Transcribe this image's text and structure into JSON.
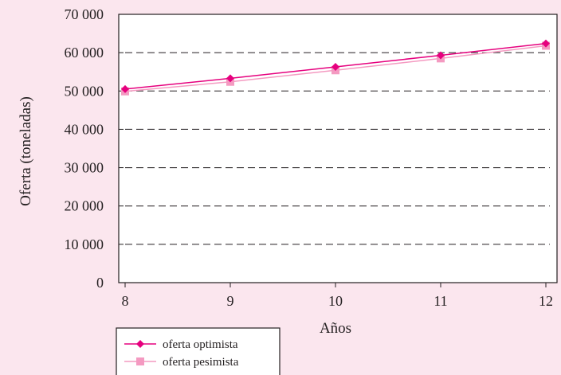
{
  "chart_data": {
    "type": "line",
    "title": "",
    "xlabel": "Años",
    "ylabel": "Oferta (toneladas)",
    "x": [
      8,
      9,
      10,
      11,
      12
    ],
    "x_ticks": [
      "8",
      "9",
      "10",
      "11",
      "12"
    ],
    "xlim": [
      8,
      12
    ],
    "ylim": [
      0,
      70000
    ],
    "y_ticks": [
      "0",
      "10 000",
      "20 000",
      "30 000",
      "40 000",
      "50 000",
      "60 000",
      "70 000"
    ],
    "y_tick_values": [
      0,
      10000,
      20000,
      30000,
      40000,
      50000,
      60000,
      70000
    ],
    "grid": "horizontal dashed",
    "legend_position": "bottom-left",
    "series": [
      {
        "name": "oferta optimista",
        "values": [
          50500,
          53300,
          56300,
          59300,
          62400
        ],
        "color": "#e6007e",
        "marker": "diamond"
      },
      {
        "name": "oferta pesimista",
        "values": [
          49900,
          52400,
          55400,
          58500,
          61800
        ],
        "color": "#f49ac1",
        "marker": "square"
      }
    ]
  }
}
